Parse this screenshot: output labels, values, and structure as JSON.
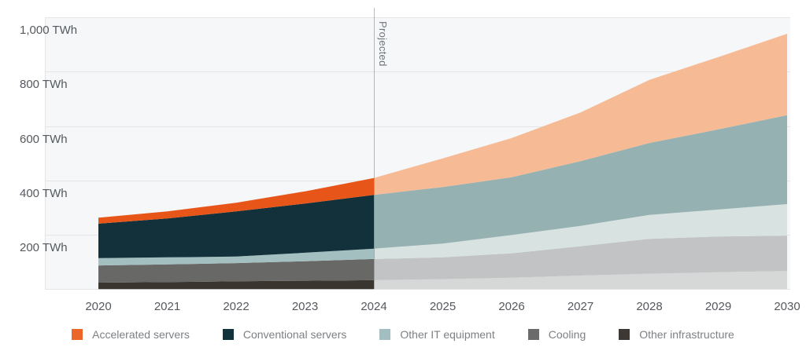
{
  "chart_data": {
    "type": "area",
    "subtype": "stacked-area",
    "unit": "TWh",
    "ylim": [
      0,
      1000
    ],
    "grid": true,
    "x": [
      2020,
      2021,
      2022,
      2023,
      2024,
      2025,
      2026,
      2027,
      2028,
      2029,
      2030
    ],
    "x_tick_labels": [
      "2020",
      "2021",
      "2022",
      "2023",
      "2024",
      "2025",
      "2026",
      "2027",
      "2028",
      "2029",
      "2030"
    ],
    "y_ticks": [
      {
        "value": 200,
        "label": "200 TWh"
      },
      {
        "value": 400,
        "label": "400 TWh"
      },
      {
        "value": 600,
        "label": "600 TWh"
      },
      {
        "value": 800,
        "label": "800 TWh"
      },
      {
        "value": 1000,
        "label": "1,000 TWh"
      }
    ],
    "projection": {
      "label": "Projected",
      "start_x": 2024
    },
    "series": [
      {
        "name": "Other infrastructure",
        "color": "#3a352f",
        "projected_color": "#d6d7d7",
        "values": [
          24,
          26,
          29,
          31,
          33,
          37,
          42,
          50,
          57,
          62,
          67
        ]
      },
      {
        "name": "Cooling",
        "color": "#686866",
        "projected_color": "#c1c3c4",
        "values": [
          63,
          65,
          67,
          72,
          78,
          80,
          90,
          108,
          128,
          132,
          130
        ]
      },
      {
        "name": "Other IT equipment",
        "color": "#a3bfc0",
        "projected_color": "#d8e2e1",
        "values": [
          27,
          26,
          24,
          31,
          38,
          51,
          67,
          75,
          88,
          99,
          116
        ]
      },
      {
        "name": "Conventional servers",
        "color": "#12313b",
        "projected_color": "#96b1b1",
        "values": [
          127,
          143,
          166,
          181,
          198,
          208,
          213,
          238,
          265,
          295,
          327
        ]
      },
      {
        "name": "Accelerated servers",
        "color": "#e85519",
        "projected_color": "#f6bb95",
        "values": [
          22,
          26,
          32,
          45,
          62,
          105,
          144,
          179,
          232,
          266,
          300
        ]
      }
    ],
    "legend": [
      {
        "label": "Accelerated servers",
        "color": "#ec6529"
      },
      {
        "label": "Conventional servers",
        "color": "#12323c"
      },
      {
        "label": "Other IT equipment",
        "color": "#a2bec0"
      },
      {
        "label": "Cooling",
        "color": "#6b6b6b"
      },
      {
        "label": "Other infrastructure",
        "color": "#3d3834"
      }
    ],
    "legend_position": "bottom",
    "theme": {
      "plot_background": "#f5f7f9",
      "gridline_color": "#e3e6e8",
      "axis_text_color": "#55595e",
      "legend_text_color": "#7d8084",
      "projection_text_color": "#6f747a"
    }
  }
}
